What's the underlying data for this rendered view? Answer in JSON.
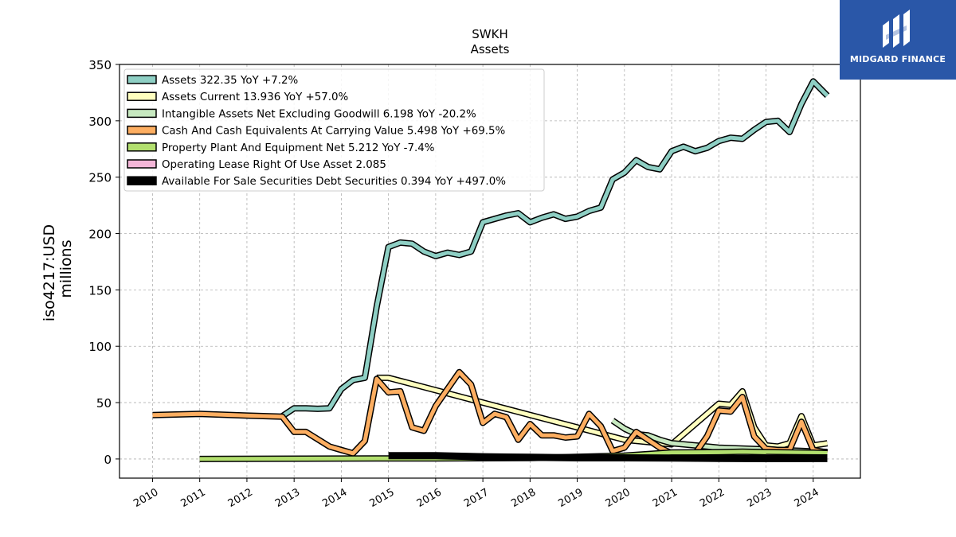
{
  "logo": {
    "text": "MIDGARD FINANCE"
  },
  "chart_data": {
    "type": "line",
    "title": "SWKH",
    "subtitle": "Assets",
    "ylabel": "iso4217:USD",
    "ylabel2": "millions",
    "xlabel": "",
    "ylim": [
      -17,
      350
    ],
    "xlim": [
      2009.3,
      2025.0
    ],
    "yticks": [
      0,
      50,
      100,
      150,
      200,
      250,
      300,
      350
    ],
    "xticks": [
      "2010",
      "2011",
      "2012",
      "2013",
      "2014",
      "2015",
      "2016",
      "2017",
      "2018",
      "2019",
      "2020",
      "2021",
      "2022",
      "2023",
      "2024"
    ],
    "grid": true,
    "legend_position": "top-left",
    "series": [
      {
        "name": "Assets",
        "legend": "Assets  322.35 YoY +7.2%",
        "color": "#8ecfc4",
        "width": 5,
        "points": [
          [
            2012.75,
            38
          ],
          [
            2013.0,
            45
          ],
          [
            2013.25,
            45
          ],
          [
            2013.5,
            44.5
          ],
          [
            2013.75,
            45
          ],
          [
            2014.0,
            62
          ],
          [
            2014.25,
            70
          ],
          [
            2014.5,
            72
          ],
          [
            2014.75,
            135
          ],
          [
            2015.0,
            188
          ],
          [
            2015.25,
            192
          ],
          [
            2015.5,
            191
          ],
          [
            2015.75,
            184
          ],
          [
            2016.0,
            180
          ],
          [
            2016.25,
            183
          ],
          [
            2016.5,
            181
          ],
          [
            2016.75,
            184
          ],
          [
            2017.0,
            210
          ],
          [
            2017.25,
            213
          ],
          [
            2017.5,
            216
          ],
          [
            2017.75,
            218
          ],
          [
            2018.0,
            210
          ],
          [
            2018.25,
            214
          ],
          [
            2018.5,
            217
          ],
          [
            2018.75,
            213
          ],
          [
            2019.0,
            215
          ],
          [
            2019.25,
            220
          ],
          [
            2019.5,
            223
          ],
          [
            2019.75,
            248
          ],
          [
            2020.0,
            254
          ],
          [
            2020.25,
            265
          ],
          [
            2020.5,
            259
          ],
          [
            2020.75,
            257
          ],
          [
            2021.0,
            273
          ],
          [
            2021.25,
            277
          ],
          [
            2021.5,
            273
          ],
          [
            2021.75,
            276
          ],
          [
            2022.0,
            282
          ],
          [
            2022.25,
            285
          ],
          [
            2022.5,
            284
          ],
          [
            2022.75,
            292
          ],
          [
            2023.0,
            299
          ],
          [
            2023.25,
            300
          ],
          [
            2023.5,
            290
          ],
          [
            2023.75,
            315
          ],
          [
            2024.0,
            335
          ],
          [
            2024.3,
            322.35
          ]
        ]
      },
      {
        "name": "Assets Current",
        "legend": "Assets Current  13.936 YoY +57.0%",
        "color": "#ffffbf",
        "width": 5,
        "points": [
          [
            2014.75,
            72
          ],
          [
            2015.0,
            72
          ],
          [
            2020.0,
            17
          ],
          [
            2021.0,
            13
          ],
          [
            2022.0,
            49
          ],
          [
            2022.25,
            48
          ],
          [
            2022.5,
            60
          ],
          [
            2022.75,
            28
          ],
          [
            2023.0,
            12
          ],
          [
            2023.25,
            11
          ],
          [
            2023.5,
            14
          ],
          [
            2023.75,
            38
          ],
          [
            2024.0,
            12
          ],
          [
            2024.3,
            13.936
          ]
        ]
      },
      {
        "name": "Intangible Assets Net Excluding Goodwill",
        "legend": "Intangible Assets Net Excluding Goodwill  6.198 YoY -20.2%",
        "color": "#c7e9c0",
        "width": 5,
        "points": [
          [
            2019.75,
            34
          ],
          [
            2020.0,
            27
          ],
          [
            2020.25,
            22
          ],
          [
            2020.5,
            21
          ],
          [
            2020.75,
            17
          ],
          [
            2021.0,
            14
          ],
          [
            2021.5,
            12
          ],
          [
            2022.0,
            10
          ],
          [
            2023.0,
            8.5
          ],
          [
            2024.3,
            6.198
          ]
        ]
      },
      {
        "name": "Cash And Cash Equivalents At Carrying Value",
        "legend": "Cash And Cash Equivalents At Carrying Value  5.498 YoY +69.5%",
        "color": "#fdae61",
        "width": 5,
        "points": [
          [
            2010.0,
            39
          ],
          [
            2011.0,
            40
          ],
          [
            2012.0,
            38.5
          ],
          [
            2012.75,
            37.5
          ],
          [
            2013.0,
            24
          ],
          [
            2013.25,
            24
          ],
          [
            2013.75,
            11
          ],
          [
            2014.0,
            8
          ],
          [
            2014.25,
            5
          ],
          [
            2014.5,
            16
          ],
          [
            2014.75,
            71
          ],
          [
            2015.0,
            59
          ],
          [
            2015.25,
            60
          ],
          [
            2015.5,
            28
          ],
          [
            2015.75,
            25
          ],
          [
            2016.0,
            47
          ],
          [
            2016.25,
            62
          ],
          [
            2016.5,
            77
          ],
          [
            2016.75,
            66
          ],
          [
            2017.0,
            32
          ],
          [
            2017.25,
            40
          ],
          [
            2017.5,
            37
          ],
          [
            2017.75,
            17
          ],
          [
            2018.0,
            31
          ],
          [
            2018.25,
            21
          ],
          [
            2018.5,
            21
          ],
          [
            2018.75,
            19
          ],
          [
            2019.0,
            20
          ],
          [
            2019.25,
            40
          ],
          [
            2019.5,
            29
          ],
          [
            2019.75,
            7
          ],
          [
            2020.0,
            10
          ],
          [
            2020.25,
            24
          ],
          [
            2020.5,
            17
          ],
          [
            2020.75,
            10
          ],
          [
            2021.0,
            5
          ],
          [
            2021.5,
            5
          ],
          [
            2021.75,
            20
          ],
          [
            2022.0,
            43
          ],
          [
            2022.25,
            42
          ],
          [
            2022.5,
            55
          ],
          [
            2022.75,
            20
          ],
          [
            2023.0,
            9
          ],
          [
            2023.25,
            8
          ],
          [
            2023.5,
            8
          ],
          [
            2023.75,
            33
          ],
          [
            2024.0,
            8
          ],
          [
            2024.3,
            5.498
          ]
        ]
      },
      {
        "name": "Property Plant And Equipment Net",
        "legend": "Property Plant And Equipment Net  5.212 YoY -7.4%",
        "color": "#b2df6e",
        "width": 5,
        "points": [
          [
            2011.0,
            0
          ],
          [
            2014.75,
            0.5
          ],
          [
            2016.0,
            0.5
          ],
          [
            2018.0,
            0.8
          ],
          [
            2020.0,
            3
          ],
          [
            2021.0,
            5.8
          ],
          [
            2022.0,
            6
          ],
          [
            2022.5,
            6.5
          ],
          [
            2023.0,
            6
          ],
          [
            2024.0,
            5.6
          ],
          [
            2024.3,
            5.212
          ]
        ]
      },
      {
        "name": "Operating Lease Right Of Use Asset",
        "legend": "Operating Lease Right Of Use Asset  2.085",
        "color": "#f4b6d8",
        "width": 3,
        "points": [
          [
            2023.0,
            2.5
          ],
          [
            2024.3,
            2.085
          ]
        ]
      },
      {
        "name": "Available For Sale Securities Debt Securities",
        "legend": "Available For Sale Securities Debt Securities  0.394 YoY +497.0%",
        "color": "#000000",
        "width": 6,
        "points": [
          [
            2015.0,
            3
          ],
          [
            2016.0,
            3
          ],
          [
            2017.0,
            2
          ],
          [
            2018.0,
            1.5
          ],
          [
            2019.0,
            1
          ],
          [
            2020.0,
            1
          ],
          [
            2021.0,
            0.8
          ],
          [
            2022.0,
            0.5
          ],
          [
            2023.0,
            0.3
          ],
          [
            2024.3,
            0.394
          ]
        ]
      }
    ]
  }
}
